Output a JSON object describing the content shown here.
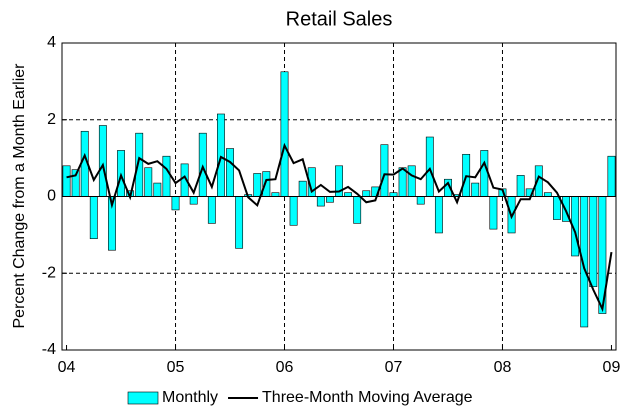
{
  "chart_data": {
    "type": "bar",
    "title": "Retail Sales",
    "y_label": "Percent Change from a  Month Earlier",
    "categories": [
      "04",
      null,
      null,
      null,
      null,
      null,
      null,
      null,
      null,
      null,
      null,
      null,
      "05",
      null,
      null,
      null,
      null,
      null,
      null,
      null,
      null,
      null,
      null,
      null,
      "06",
      null,
      null,
      null,
      null,
      null,
      null,
      null,
      null,
      null,
      null,
      null,
      "07",
      null,
      null,
      null,
      null,
      null,
      null,
      null,
      null,
      null,
      null,
      null,
      "08",
      null,
      null,
      null,
      null,
      null,
      null,
      null,
      null,
      null,
      null,
      null,
      "09"
    ],
    "series": [
      {
        "name": "Monthly",
        "type": "bar",
        "color": "#00ffff",
        "values": [
          0.8,
          0.7,
          1.7,
          -1.1,
          1.85,
          -1.4,
          1.2,
          0.15,
          1.65,
          0.75,
          0.35,
          1.05,
          -0.35,
          0.85,
          -0.2,
          1.65,
          -0.7,
          2.15,
          1.25,
          -1.35,
          0.05,
          0.6,
          0.65,
          0.1,
          3.25,
          -0.75,
          0.4,
          0.75,
          -0.25,
          -0.15,
          0.8,
          0.1,
          -0.7,
          0.15,
          0.25,
          1.35,
          0.1,
          0.75,
          0.8,
          -0.2,
          1.55,
          -0.95,
          0.45,
          0.05,
          1.1,
          0.35,
          1.2,
          -0.85,
          0.2,
          -0.95,
          0.55,
          0.2,
          0.8,
          0.1,
          -0.6,
          -0.65,
          -1.55,
          -3.4,
          -2.35,
          -3.05,
          1.05
        ]
      },
      {
        "name": "Three-Month Moving Average",
        "type": "line",
        "color": "#000000",
        "values": [
          0.5,
          0.55,
          1.07,
          0.43,
          0.82,
          -0.22,
          0.55,
          -0.02,
          1.0,
          0.85,
          0.92,
          0.72,
          0.35,
          0.52,
          0.1,
          0.77,
          0.25,
          1.03,
          0.9,
          0.68,
          -0.02,
          -0.23,
          0.43,
          0.45,
          1.33,
          0.87,
          0.97,
          0.13,
          0.3,
          0.12,
          0.13,
          0.25,
          0.07,
          -0.15,
          -0.1,
          0.58,
          0.57,
          0.73,
          0.55,
          0.45,
          0.72,
          0.13,
          0.35,
          -0.15,
          0.53,
          0.5,
          0.88,
          0.23,
          0.18,
          -0.53,
          -0.07,
          -0.07,
          0.52,
          0.37,
          0.1,
          -0.38,
          -0.93,
          -1.87,
          -2.43,
          -2.93,
          -1.45
        ]
      }
    ],
    "ylim": [
      -4,
      4
    ],
    "yticks": [
      -4,
      -2,
      0,
      2,
      4
    ],
    "grid": true
  }
}
